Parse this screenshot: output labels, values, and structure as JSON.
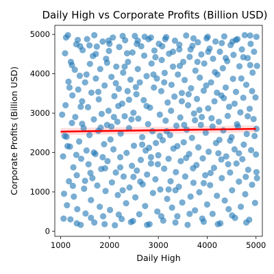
{
  "chart_data": {
    "type": "scatter",
    "title": "Daily High vs Corporate Profits (Billion USD)",
    "xlabel": "Daily High",
    "ylabel": "Corporate Profits (Billion USD)",
    "xlim": [
      880,
      5130
    ],
    "ylim": [
      -130,
      5230
    ],
    "x_ticks": [
      1000,
      2000,
      3000,
      4000,
      5000
    ],
    "y_ticks": [
      0,
      1000,
      2000,
      3000,
      4000,
      5000
    ],
    "points": [
      [
        1030,
        2960
      ],
      [
        1050,
        1900
      ],
      [
        1070,
        950
      ],
      [
        1090,
        4520
      ],
      [
        1100,
        3200
      ],
      [
        1120,
        2400
      ],
      [
        1130,
        660
      ],
      [
        1150,
        4980
      ],
      [
        1160,
        3800
      ],
      [
        1170,
        1270
      ],
      [
        1190,
        2150
      ],
      [
        1200,
        300
      ],
      [
        1210,
        4300
      ],
      [
        1230,
        2750
      ],
      [
        1240,
        3450
      ],
      [
        1260,
        1620
      ],
      [
        1270,
        880
      ],
      [
        1290,
        4100
      ],
      [
        1300,
        2900
      ],
      [
        1320,
        4750
      ],
      [
        1330,
        1420
      ],
      [
        1340,
        560
      ],
      [
        1360,
        3600
      ],
      [
        1380,
        2280
      ],
      [
        1390,
        3950
      ],
      [
        1410,
        160
      ],
      [
        1420,
        1840
      ],
      [
        1440,
        3300
      ],
      [
        1450,
        4600
      ],
      [
        1470,
        2620
      ],
      [
        1480,
        1080
      ],
      [
        1500,
        3780
      ],
      [
        1510,
        450
      ],
      [
        1530,
        2050
      ],
      [
        1540,
        4880
      ],
      [
        1560,
        3150
      ],
      [
        1570,
        1700
      ],
      [
        1590,
        2440
      ],
      [
        1600,
        4250
      ],
      [
        1620,
        790
      ],
      [
        1630,
        3520
      ],
      [
        1650,
        1350
      ],
      [
        1660,
        4450
      ],
      [
        1680,
        2840
      ],
      [
        1690,
        220
      ],
      [
        1710,
        1960
      ],
      [
        1720,
        3880
      ],
      [
        1740,
        4690
      ],
      [
        1750,
        1160
      ],
      [
        1770,
        2550
      ],
      [
        1780,
        3350
      ],
      [
        1800,
        620
      ],
      [
        1810,
        4120
      ],
      [
        1830,
        1580
      ],
      [
        1840,
        2980
      ],
      [
        1860,
        4820
      ],
      [
        1870,
        380
      ],
      [
        1890,
        2210
      ],
      [
        1900,
        3700
      ],
      [
        1920,
        1020
      ],
      [
        1930,
        4380
      ],
      [
        1950,
        2700
      ],
      [
        1960,
        1780
      ],
      [
        1980,
        3060
      ],
      [
        1990,
        4580
      ],
      [
        2010,
        540
      ],
      [
        2020,
        2330
      ],
      [
        2040,
        3920
      ],
      [
        2050,
        1240
      ],
      [
        2070,
        4920
      ],
      [
        2080,
        2080
      ],
      [
        2100,
        3430
      ],
      [
        2110,
        150
      ],
      [
        2130,
        1490
      ],
      [
        2140,
        4180
      ],
      [
        2160,
        2780
      ],
      [
        2170,
        920
      ],
      [
        2190,
        3620
      ],
      [
        2200,
        4680
      ],
      [
        2220,
        1880
      ],
      [
        2230,
        2480
      ],
      [
        2250,
        310
      ],
      [
        2260,
        3240
      ],
      [
        2280,
        4030
      ],
      [
        2290,
        1390
      ],
      [
        2310,
        2920
      ],
      [
        2320,
        4850
      ],
      [
        2340,
        710
      ],
      [
        2350,
        1990
      ],
      [
        2370,
        3560
      ],
      [
        2380,
        4300
      ],
      [
        2400,
        2620
      ],
      [
        2410,
        1110
      ],
      [
        2430,
        3850
      ],
      [
        2440,
        230
      ],
      [
        2460,
        1660
      ],
      [
        2470,
        4540
      ],
      [
        2490,
        3010
      ],
      [
        2500,
        2170
      ],
      [
        2520,
        4960
      ],
      [
        2530,
        860
      ],
      [
        2550,
        3480
      ],
      [
        2560,
        1540
      ],
      [
        2580,
        4120
      ],
      [
        2590,
        2860
      ],
      [
        2610,
        430
      ],
      [
        2620,
        3780
      ],
      [
        2640,
        1810
      ],
      [
        2650,
        4700
      ],
      [
        2670,
        2390
      ],
      [
        2680,
        1190
      ],
      [
        2700,
        3330
      ],
      [
        2710,
        4460
      ],
      [
        2730,
        640
      ],
      [
        2740,
        2050
      ],
      [
        2760,
        3940
      ],
      [
        2770,
        1440
      ],
      [
        2790,
        2720
      ],
      [
        2800,
        4880
      ],
      [
        2820,
        180
      ],
      [
        2830,
        3140
      ],
      [
        2850,
        1720
      ],
      [
        2860,
        4260
      ],
      [
        2880,
        2540
      ],
      [
        2890,
        970
      ],
      [
        2910,
        3650
      ],
      [
        2920,
        4590
      ],
      [
        2940,
        1320
      ],
      [
        2950,
        2240
      ],
      [
        2970,
        3880
      ],
      [
        2980,
        500
      ],
      [
        3000,
        1930
      ],
      [
        3010,
        4760
      ],
      [
        3030,
        2960
      ],
      [
        3040,
        1060
      ],
      [
        3060,
        3560
      ],
      [
        3070,
        4350
      ],
      [
        3090,
        2310
      ],
      [
        3100,
        270
      ],
      [
        3120,
        1590
      ],
      [
        3130,
        4020
      ],
      [
        3150,
        2810
      ],
      [
        3160,
        4930
      ],
      [
        3180,
        820
      ],
      [
        3190,
        3270
      ],
      [
        3210,
        1840
      ],
      [
        3220,
        4510
      ],
      [
        3240,
        2440
      ],
      [
        3250,
        1270
      ],
      [
        3270,
        3720
      ],
      [
        3280,
        600
      ],
      [
        3300,
        4180
      ],
      [
        3310,
        2100
      ],
      [
        3330,
        3420
      ],
      [
        3340,
        4840
      ],
      [
        3360,
        1500
      ],
      [
        3370,
        2680
      ],
      [
        3390,
        380
      ],
      [
        3400,
        3980
      ],
      [
        3420,
        1130
      ],
      [
        3430,
        4620
      ],
      [
        3450,
        2890
      ],
      [
        3460,
        1780
      ],
      [
        3480,
        3510
      ],
      [
        3490,
        730
      ],
      [
        3510,
        4300
      ],
      [
        3520,
        2260
      ],
      [
        3540,
        3840
      ],
      [
        3550,
        1390
      ],
      [
        3570,
        4970
      ],
      [
        3580,
        2580
      ],
      [
        3600,
        160
      ],
      [
        3610,
        3200
      ],
      [
        3630,
        1960
      ],
      [
        3640,
        4430
      ],
      [
        3660,
        880
      ],
      [
        3670,
        3630
      ],
      [
        3690,
        2370
      ],
      [
        3700,
        4710
      ],
      [
        3720,
        1230
      ],
      [
        3730,
        2990
      ],
      [
        3750,
        530
      ],
      [
        3760,
        4080
      ],
      [
        3780,
        1680
      ],
      [
        3790,
        3360
      ],
      [
        3810,
        4800
      ],
      [
        3820,
        2130
      ],
      [
        3840,
        990
      ],
      [
        3850,
        3900
      ],
      [
        3870,
        2700
      ],
      [
        3880,
        4490
      ],
      [
        3900,
        320
      ],
      [
        3910,
        1850
      ],
      [
        3930,
        3570
      ],
      [
        3940,
        4260
      ],
      [
        3960,
        1420
      ],
      [
        3970,
        2500
      ],
      [
        3990,
        4900
      ],
      [
        4000,
        680
      ],
      [
        4020,
        3120
      ],
      [
        4030,
        2020
      ],
      [
        4050,
        4640
      ],
      [
        4060,
        1170
      ],
      [
        4080,
        3780
      ],
      [
        4090,
        2870
      ],
      [
        4110,
        440
      ],
      [
        4120,
        4380
      ],
      [
        4140,
        1610
      ],
      [
        4150,
        3300
      ],
      [
        4170,
        4820
      ],
      [
        4180,
        2240
      ],
      [
        4200,
        900
      ],
      [
        4210,
        3980
      ],
      [
        4230,
        1980
      ],
      [
        4240,
        2780
      ],
      [
        4260,
        4560
      ],
      [
        4270,
        200
      ],
      [
        4290,
        3450
      ],
      [
        4300,
        1350
      ],
      [
        4320,
        4140
      ],
      [
        4330,
        2560
      ],
      [
        4350,
        4950
      ],
      [
        4360,
        780
      ],
      [
        4380,
        3650
      ],
      [
        4390,
        1900
      ],
      [
        4410,
        4320
      ],
      [
        4420,
        2930
      ],
      [
        4440,
        560
      ],
      [
        4450,
        3160
      ],
      [
        4470,
        1490
      ],
      [
        4480,
        4730
      ],
      [
        4500,
        2390
      ],
      [
        4510,
        1040
      ],
      [
        4530,
        3870
      ],
      [
        4540,
        4480
      ],
      [
        4560,
        2080
      ],
      [
        4570,
        340
      ],
      [
        4590,
        3540
      ],
      [
        4600,
        1720
      ],
      [
        4620,
        4880
      ],
      [
        4630,
        2660
      ],
      [
        4650,
        1260
      ],
      [
        4660,
        4190
      ],
      [
        4680,
        3020
      ],
      [
        4690,
        620
      ],
      [
        4710,
        4620
      ],
      [
        4720,
        1830
      ],
      [
        4740,
        3390
      ],
      [
        4750,
        2200
      ],
      [
        4770,
        4980
      ],
      [
        4780,
        940
      ],
      [
        4800,
        3720
      ],
      [
        4810,
        2470
      ],
      [
        4830,
        4400
      ],
      [
        4840,
        1560
      ],
      [
        4860,
        290
      ],
      [
        4870,
        3110
      ],
      [
        4890,
        4760
      ],
      [
        4900,
        2060
      ],
      [
        4920,
        1180
      ],
      [
        4930,
        4030
      ],
      [
        4950,
        2850
      ],
      [
        4960,
        4560
      ],
      [
        4980,
        720
      ],
      [
        4990,
        3400
      ],
      [
        5000,
        1950
      ],
      [
        5010,
        4940
      ],
      [
        5010,
        2600
      ],
      [
        5020,
        1350
      ],
      [
        5020,
        4200
      ],
      [
        1080,
        2420
      ],
      [
        1180,
        3650
      ],
      [
        1250,
        1150
      ],
      [
        1350,
        4860
      ],
      [
        1440,
        2730
      ],
      [
        1530,
        3980
      ],
      [
        1610,
        1480
      ],
      [
        1720,
        4500
      ],
      [
        1820,
        2630
      ],
      [
        1910,
        1600
      ],
      [
        2000,
        4760
      ],
      [
        2090,
        2900
      ],
      [
        2180,
        3180
      ],
      [
        2270,
        1040
      ],
      [
        2360,
        4520
      ],
      [
        2450,
        2840
      ],
      [
        2540,
        3660
      ],
      [
        2630,
        1260
      ],
      [
        2720,
        4940
      ],
      [
        2810,
        2120
      ],
      [
        2900,
        3980
      ],
      [
        2990,
        1700
      ],
      [
        3080,
        4700
      ],
      [
        3170,
        2540
      ],
      [
        3260,
        3060
      ],
      [
        3350,
        1040
      ],
      [
        3440,
        4200
      ],
      [
        3530,
        2700
      ],
      [
        3620,
        3480
      ],
      [
        3710,
        1600
      ],
      [
        3800,
        4300
      ],
      [
        3890,
        2900
      ],
      [
        3980,
        3700
      ],
      [
        4070,
        1480
      ],
      [
        4160,
        4040
      ],
      [
        4250,
        2320
      ],
      [
        4340,
        3380
      ],
      [
        4430,
        1700
      ],
      [
        4520,
        4820
      ],
      [
        4610,
        2720
      ],
      [
        4700,
        3880
      ],
      [
        4790,
        1380
      ],
      [
        4880,
        4220
      ],
      [
        4970,
        2420
      ],
      [
        1140,
        2160
      ],
      [
        1230,
        4220
      ],
      [
        1320,
        1940
      ],
      [
        1410,
        3160
      ],
      [
        1500,
        1280
      ],
      [
        1590,
        4720
      ],
      [
        1680,
        2000
      ],
      [
        1770,
        3540
      ],
      [
        1860,
        1880
      ],
      [
        1950,
        4280
      ],
      [
        2040,
        2660
      ],
      [
        2130,
        3760
      ],
      [
        2220,
        1620
      ],
      [
        2310,
        4180
      ],
      [
        2400,
        3340
      ],
      [
        2490,
        1380
      ],
      [
        2580,
        4840
      ],
      [
        2670,
        2200
      ],
      [
        2760,
        3180
      ],
      [
        2850,
        1880
      ],
      [
        2940,
        4420
      ],
      [
        3030,
        2420
      ],
      [
        3120,
        3780
      ],
      [
        3210,
        1060
      ],
      [
        3300,
        4560
      ],
      [
        3390,
        2160
      ],
      [
        3480,
        3300
      ],
      [
        3570,
        1860
      ],
      [
        3660,
        4620
      ],
      [
        3750,
        2820
      ],
      [
        3840,
        3080
      ],
      [
        3930,
        1220
      ],
      [
        4020,
        4560
      ],
      [
        4110,
        2660
      ],
      [
        4200,
        3520
      ],
      [
        4290,
        1820
      ],
      [
        4380,
        4400
      ],
      [
        4470,
        2300
      ],
      [
        4560,
        3240
      ],
      [
        4650,
        1980
      ],
      [
        4740,
        4420
      ],
      [
        4830,
        2920
      ],
      [
        4920,
        3560
      ],
      [
        5010,
        1500
      ],
      [
        1060,
        320
      ],
      [
        1330,
        200
      ],
      [
        1620,
        340
      ],
      [
        1900,
        180
      ],
      [
        2190,
        420
      ],
      [
        2480,
        260
      ],
      [
        2770,
        160
      ],
      [
        3060,
        380
      ],
      [
        3350,
        220
      ],
      [
        3640,
        440
      ],
      [
        3930,
        240
      ],
      [
        4220,
        180
      ],
      [
        4510,
        400
      ],
      [
        4800,
        220
      ],
      [
        1110,
        4920
      ],
      [
        1400,
        4700
      ],
      [
        1690,
        4980
      ],
      [
        1980,
        4840
      ],
      [
        2270,
        4960
      ],
      [
        2560,
        4760
      ],
      [
        2850,
        4920
      ],
      [
        3140,
        4880
      ],
      [
        3430,
        4740
      ],
      [
        3720,
        4900
      ],
      [
        4010,
        4940
      ],
      [
        4300,
        4780
      ],
      [
        4590,
        4860
      ],
      [
        4880,
        4970
      ]
    ],
    "fit_line": [
      [
        1000,
        2530
      ],
      [
        5000,
        2600
      ]
    ],
    "point_color": "#1f77b4",
    "line_color": "#ff0000",
    "band_color": "#ffb3b3"
  }
}
